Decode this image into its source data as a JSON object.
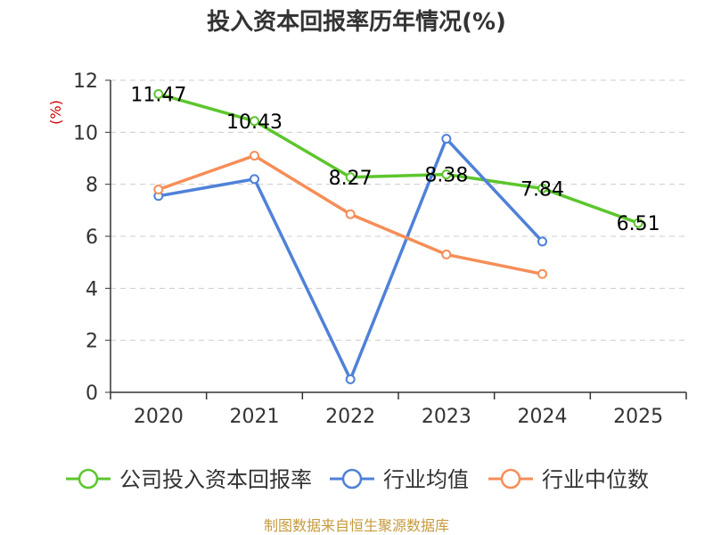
{
  "chart_data": {
    "type": "line",
    "title": "投入资本回报率历年情况(%)",
    "ylabel": "(%)",
    "xlabel": "",
    "ylim": [
      0,
      12
    ],
    "yticks": [
      0,
      2,
      4,
      6,
      8,
      10,
      12
    ],
    "categories": [
      "2020",
      "2021",
      "2022",
      "2023",
      "2024",
      "2025"
    ],
    "grid": "horizontal-dashed",
    "legend_position": "bottom",
    "series": [
      {
        "name": "公司投入资本回报率",
        "color": "#5cc62d",
        "values": [
          11.47,
          10.43,
          8.27,
          8.38,
          7.84,
          6.51
        ],
        "labels": [
          "11.47",
          "10.43",
          "8.27",
          "8.38",
          "7.84",
          "6.51"
        ]
      },
      {
        "name": "行业均值",
        "color": "#4f81d8",
        "values": [
          7.55,
          8.2,
          0.5,
          9.75,
          5.8,
          null
        ]
      },
      {
        "name": "行业中位数",
        "color": "#f58e58",
        "values": [
          7.8,
          9.1,
          6.85,
          5.3,
          4.55,
          null
        ]
      }
    ]
  },
  "source": {
    "text": "制图数据来自恒生聚源数据库",
    "color": "#c59a3b"
  },
  "colors": {
    "ylabel": "#cc0000",
    "axis": "#333333",
    "grid": "#cccccc"
  }
}
